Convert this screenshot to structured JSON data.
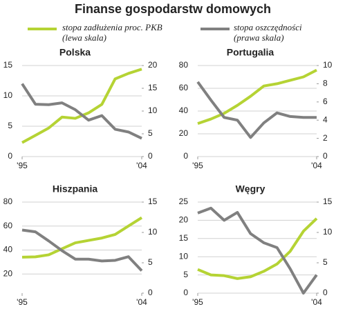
{
  "title": "Finanse gospodarstw domowych",
  "legend_notes": [
    "(lewa skala)",
    "(prawa skala)"
  ],
  "chart_data": [
    {
      "type": "line",
      "title": "Polska",
      "x": [
        1995,
        1996,
        1997,
        1998,
        1999,
        2000,
        2001,
        2002,
        2003,
        2004
      ],
      "xlim": [
        1995,
        2004
      ],
      "xticks": [
        {
          "value": 1995,
          "label": "'95"
        },
        {
          "value": 2004,
          "label": "'04"
        }
      ],
      "ylim": [
        0,
        15
      ],
      "yticks": [
        0,
        5,
        10,
        15
      ],
      "y2lim": [
        0,
        20
      ],
      "y2ticks": [
        0,
        5,
        10,
        15,
        20
      ],
      "grid": true,
      "series": [
        {
          "name": "stopa zadłużenia proc. PKB",
          "color": "#b5d334",
          "values": [
            2.3,
            3.5,
            4.7,
            6.5,
            6.3,
            7.2,
            8.6,
            12.8,
            13.7,
            14.4
          ]
        },
        {
          "name": "stopa oszczędności",
          "color": "#808080",
          "axis": "y2",
          "values": [
            16,
            11.5,
            11.4,
            11.8,
            10.3,
            8,
            9,
            6,
            5.4,
            4
          ]
        }
      ]
    },
    {
      "type": "line",
      "title": "Portugalia",
      "x": [
        1995,
        1996,
        1997,
        1998,
        1999,
        2000,
        2001,
        2002,
        2003,
        2004
      ],
      "xlim": [
        1995,
        2004
      ],
      "xticks": [
        {
          "value": 1995,
          "label": "'95"
        },
        {
          "value": 2004,
          "label": "'04"
        }
      ],
      "ylim": [
        0,
        80
      ],
      "yticks": [
        0,
        20,
        40,
        60,
        80
      ],
      "y2lim": [
        0,
        10
      ],
      "y2ticks": [
        0,
        2,
        4,
        6,
        8,
        10
      ],
      "grid": true,
      "series": [
        {
          "name": "stopa zadłużenia proc. PKB",
          "color": "#b5d334",
          "values": [
            29,
            33,
            38,
            45,
            53,
            62,
            64,
            67,
            70,
            76
          ]
        },
        {
          "name": "stopa oszczędności",
          "color": "#808080",
          "axis": "y2",
          "values": [
            8.2,
            6.2,
            4.3,
            4.0,
            2.1,
            3.7,
            4.8,
            4.4,
            4.3,
            4.3
          ]
        }
      ]
    },
    {
      "type": "line",
      "title": "Hiszpania",
      "x": [
        1995,
        1996,
        1997,
        1998,
        1999,
        2000,
        2001,
        2002,
        2003,
        2004
      ],
      "xlim": [
        1995,
        2004
      ],
      "xticks": [
        {
          "value": 1995,
          "label": "'95"
        },
        {
          "value": 2004,
          "label": "'04"
        }
      ],
      "ylim": [
        4,
        80
      ],
      "yticks": [
        20,
        40,
        60,
        80
      ],
      "y2lim": [
        0,
        15
      ],
      "y2ticks": [
        0,
        5,
        10,
        15
      ],
      "grid": true,
      "series": [
        {
          "name": "stopa zadłużenia proc. PKB",
          "color": "#b5d334",
          "values": [
            34,
            34.3,
            36,
            41,
            46,
            48,
            50,
            53,
            60,
            67
          ]
        },
        {
          "name": "stopa oszczędności",
          "color": "#808080",
          "axis": "y2",
          "values": [
            10.4,
            10.1,
            8.6,
            7.0,
            5.6,
            5.6,
            5.3,
            5.4,
            6.0,
            3.7
          ]
        }
      ]
    },
    {
      "type": "line",
      "title": "Węgry",
      "x": [
        1995,
        1996,
        1997,
        1998,
        1999,
        2000,
        2001,
        2002,
        2003,
        2004
      ],
      "xlim": [
        1995,
        2004
      ],
      "xticks": [
        {
          "value": 1995,
          "label": "'95"
        },
        {
          "value": 2004,
          "label": "'04"
        }
      ],
      "ylim": [
        0,
        25
      ],
      "yticks": [
        0,
        5,
        10,
        15,
        20,
        25
      ],
      "y2lim": [
        0,
        15
      ],
      "y2ticks": [
        0,
        5,
        10,
        15
      ],
      "grid": true,
      "series": [
        {
          "name": "stopa zadłużenia proc. PKB",
          "color": "#b5d334",
          "values": [
            6.5,
            5,
            4.8,
            4,
            4.5,
            6,
            8,
            11.5,
            17,
            20.5
          ]
        },
        {
          "name": "stopa oszczędności",
          "color": "#808080",
          "axis": "y2",
          "values": [
            13.2,
            14,
            12,
            13.3,
            9.8,
            8.3,
            7.5,
            4,
            0,
            3
          ]
        }
      ]
    }
  ]
}
